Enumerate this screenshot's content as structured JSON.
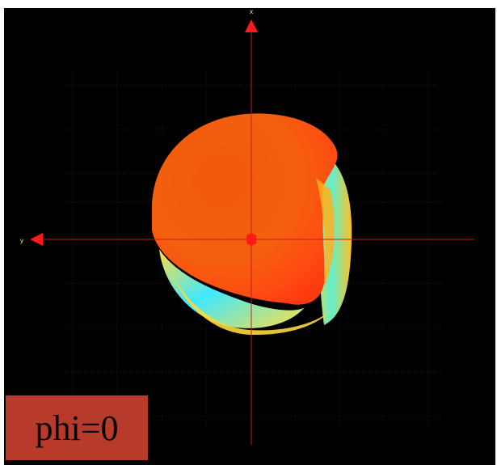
{
  "view": {
    "phi_label": "phi=0",
    "vertical_axis_label": "x",
    "horizontal_axis_label": "y",
    "colors": {
      "background": "#000000",
      "axis": "#c81e1e",
      "arrow": "#ff1a1a",
      "axis_letter": "#e8e84a",
      "grid": "#5a2a2a",
      "label_bg": "#b83a2a",
      "surface_hot": "#ff3010",
      "surface_mid": "#ff9020",
      "surface_warm": "#ffe040",
      "surface_cool": "#40e8ff"
    }
  }
}
